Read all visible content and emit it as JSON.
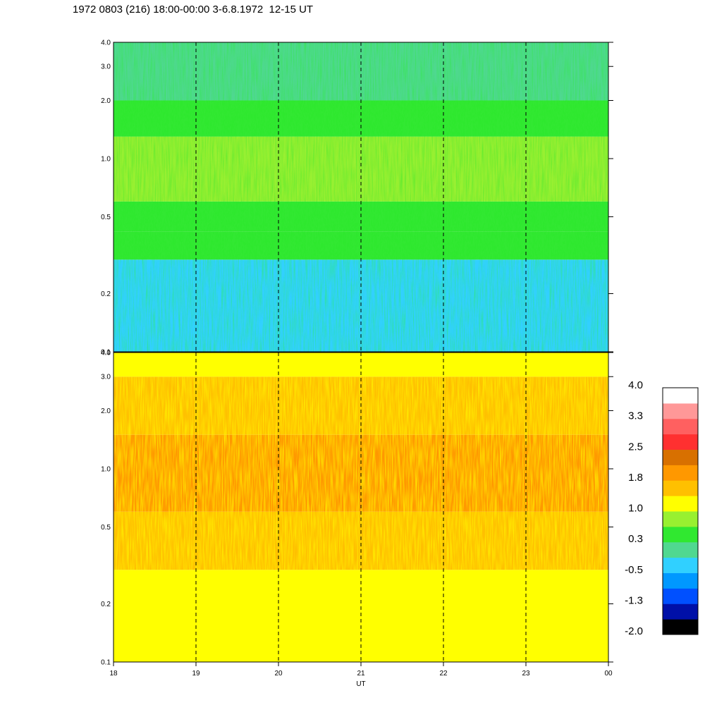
{
  "title": "1972 0803 (216) 18:00-00:00 3-6.8.1972  12-15 UT",
  "chart_data": {
    "type": "heatmap",
    "xlabel": "UT",
    "x_ticks": [
      "18",
      "19",
      "20",
      "21",
      "22",
      "23",
      "00"
    ],
    "x_range": [
      18,
      24
    ],
    "y_scale": "log",
    "y_range": [
      0.1,
      4.0
    ],
    "y_ticks": [
      "0.1",
      "0.2",
      "0.5",
      "1.0",
      "2.0",
      "3.0",
      "4.0"
    ],
    "y_tick_values": [
      0.1,
      0.2,
      0.5,
      1.0,
      2.0,
      3.0,
      4.0
    ],
    "dashed_time_lines": [
      19,
      20,
      21,
      22,
      23
    ],
    "panels": [
      {
        "name": "upper",
        "value_bands": [
          {
            "ymin": 0.1,
            "ymax": 0.3,
            "value": -0.5
          },
          {
            "ymin": 0.3,
            "ymax": 0.42,
            "value": 0.3
          },
          {
            "ymin": 0.42,
            "ymax": 0.6,
            "value": 0.6
          },
          {
            "ymin": 0.6,
            "ymax": 1.3,
            "value": 0.9
          },
          {
            "ymin": 1.3,
            "ymax": 2.0,
            "value": 0.5
          },
          {
            "ymin": 2.0,
            "ymax": 4.0,
            "value": 0.1
          }
        ]
      },
      {
        "name": "lower",
        "value_bands": [
          {
            "ymin": 0.1,
            "ymax": 0.3,
            "value": 1.1
          },
          {
            "ymin": 0.3,
            "ymax": 0.6,
            "value": 1.6
          },
          {
            "ymin": 0.6,
            "ymax": 1.5,
            "value": 1.8
          },
          {
            "ymin": 1.5,
            "ymax": 3.0,
            "value": 1.6
          },
          {
            "ymin": 3.0,
            "ymax": 4.0,
            "value": 1.1
          }
        ]
      }
    ],
    "colorbar": {
      "labels": [
        "4.0",
        "3.3",
        "2.5",
        "1.8",
        "1.0",
        "0.3",
        "-0.5",
        "-1.3",
        "-2.0"
      ],
      "range": [
        -2.0,
        4.0
      ],
      "colors": [
        "#000000",
        "#0010a8",
        "#0050ff",
        "#0098ff",
        "#30d0ff",
        "#50d890",
        "#30e830",
        "#98f030",
        "#ffff00",
        "#ffc000",
        "#ff9800",
        "#d87000",
        "#ff3030",
        "#ff6060",
        "#ff9898",
        "#ffffff"
      ]
    }
  }
}
